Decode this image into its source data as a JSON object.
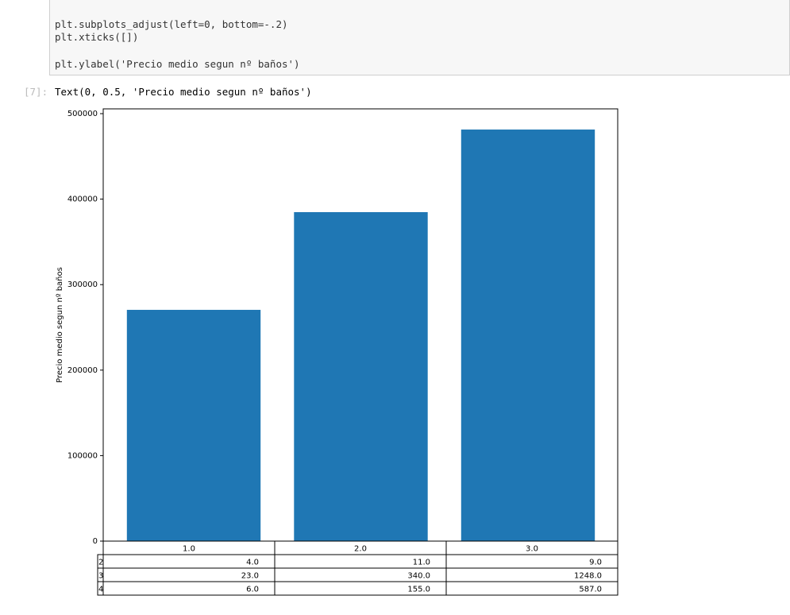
{
  "code_cell": {
    "lines": [
      "plt.subplots_adjust(left=0, bottom=-.2)",
      "plt.xticks([])",
      "plt.ylabel('Precio medio segun nº baños')"
    ]
  },
  "output": {
    "prompt": "[7]:",
    "text": "Text(0, 0.5, 'Precio medio segun nº baños')"
  },
  "chart_data": {
    "type": "bar",
    "ylabel": "Precio medio segun nº baños",
    "values": [
      270500,
      384800,
      481400
    ],
    "color": "#1f77b4",
    "ylim": [
      0,
      505600
    ],
    "yticks": [
      0,
      100000,
      200000,
      300000,
      400000,
      500000
    ]
  },
  "table": {
    "col_labels": [
      "1.0",
      "2.0",
      "3.0"
    ],
    "row_labels": [
      "2",
      "3",
      "4"
    ],
    "rows": [
      [
        "4.0",
        "11.0",
        "9.0"
      ],
      [
        "23.0",
        "340.0",
        "1248.0"
      ],
      [
        "6.0",
        "155.0",
        "587.0"
      ]
    ]
  }
}
